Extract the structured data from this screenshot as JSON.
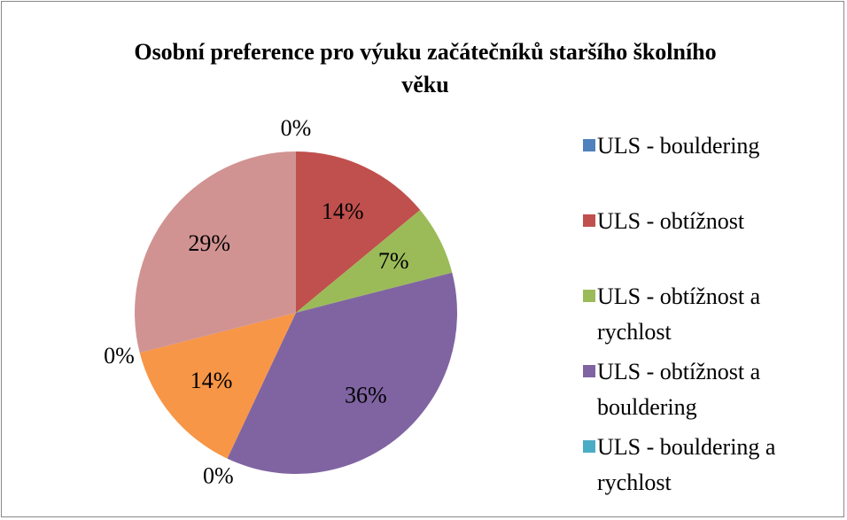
{
  "chart_data": {
    "type": "pie",
    "title": "Osobní preference pro výuku začátečníků staršího školního věku",
    "categories": [
      "ULS - bouldering",
      "ULS - obtížnost",
      "ULS - obtížnost a rychlost",
      "ULS - obtížnost a bouldering",
      "ULS - bouldering a rychlost",
      null,
      null,
      null
    ],
    "values": [
      0,
      14,
      7,
      36,
      0,
      14,
      0,
      29
    ],
    "value_labels": [
      "0%",
      "14%",
      "7%",
      "36%",
      "0%",
      "14%",
      "0%",
      "29%"
    ],
    "colors": [
      "#4f81bd",
      "#c0504d",
      "#9bbb59",
      "#8064a2",
      "#4bacc6",
      "#f79646",
      "#2c4d75",
      "#d19392"
    ],
    "legend": "right"
  }
}
